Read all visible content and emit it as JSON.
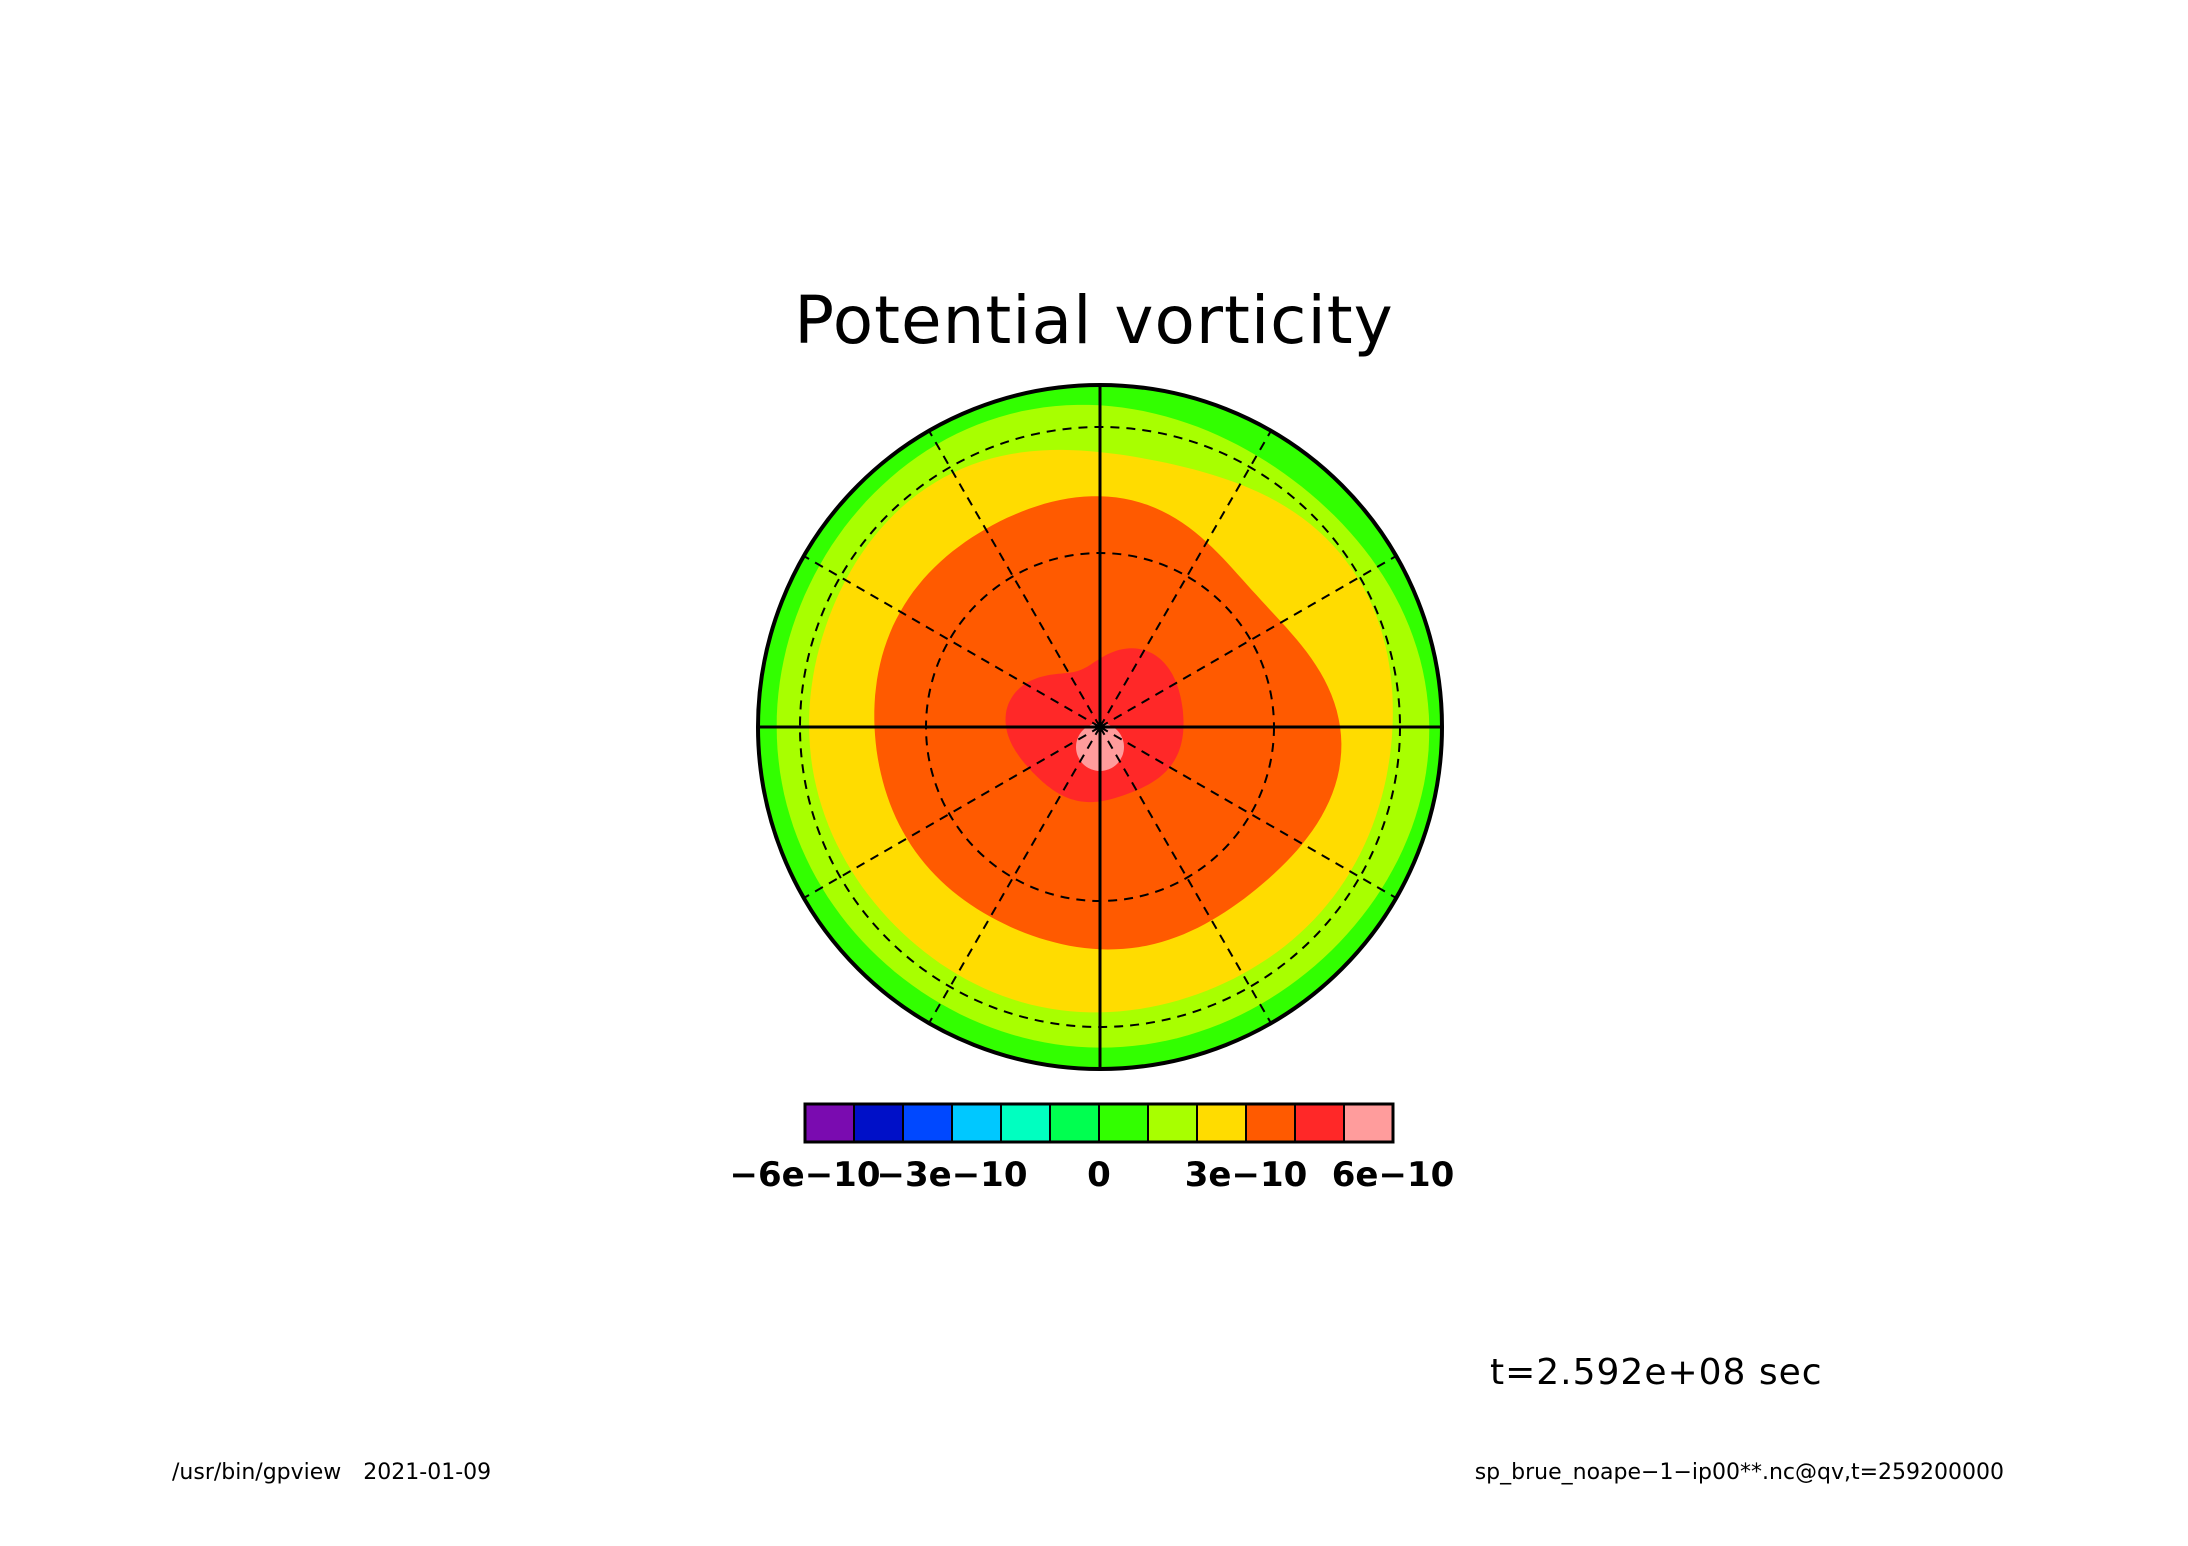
{
  "chart_data": {
    "type": "heatmap",
    "projection": "polar stereographic",
    "title": "Potential vorticity",
    "colorbar": {
      "levels": [
        -6e-10,
        -5e-10,
        -4e-10,
        -3e-10,
        -2e-10,
        -1e-10,
        0,
        1e-10,
        2e-10,
        3e-10,
        4e-10,
        5e-10,
        6e-10
      ],
      "tick_labels": [
        {
          "value": -6e-10,
          "label": "−6e−10"
        },
        {
          "value": -3e-10,
          "label": "−3e−10"
        },
        {
          "value": 0,
          "label": "0"
        },
        {
          "value": 3e-10,
          "label": "3e−10"
        },
        {
          "value": 6e-10,
          "label": "6e−10"
        }
      ],
      "colors": [
        "#7a0bb0",
        "#0010c8",
        "#0048ff",
        "#00c8ff",
        "#00ffc0",
        "#00ff50",
        "#32ff00",
        "#a8ff00",
        "#ffdc00",
        "#ff5a00",
        "#ff2828",
        "#ff9c9c"
      ]
    },
    "field_rings": [
      {
        "region": "outer edge",
        "color": "#32ff00"
      },
      {
        "region": "outer ring",
        "color": "#a8ff00"
      },
      {
        "region": "middle ring",
        "color": "#ffdc00"
      },
      {
        "region": "inner region",
        "color": "#ff5a00"
      },
      {
        "region": "polar core",
        "color": "#ff2828"
      },
      {
        "region": "pole",
        "color": "#ff9c9c"
      }
    ],
    "grid": true
  },
  "time_label": "t=2.592e+08 sec",
  "footer": {
    "program": "/usr/bin/gpview",
    "date": "2021-01-09",
    "source": "sp_brue_noape−1−ip00**.nc@qv,t=259200000"
  }
}
